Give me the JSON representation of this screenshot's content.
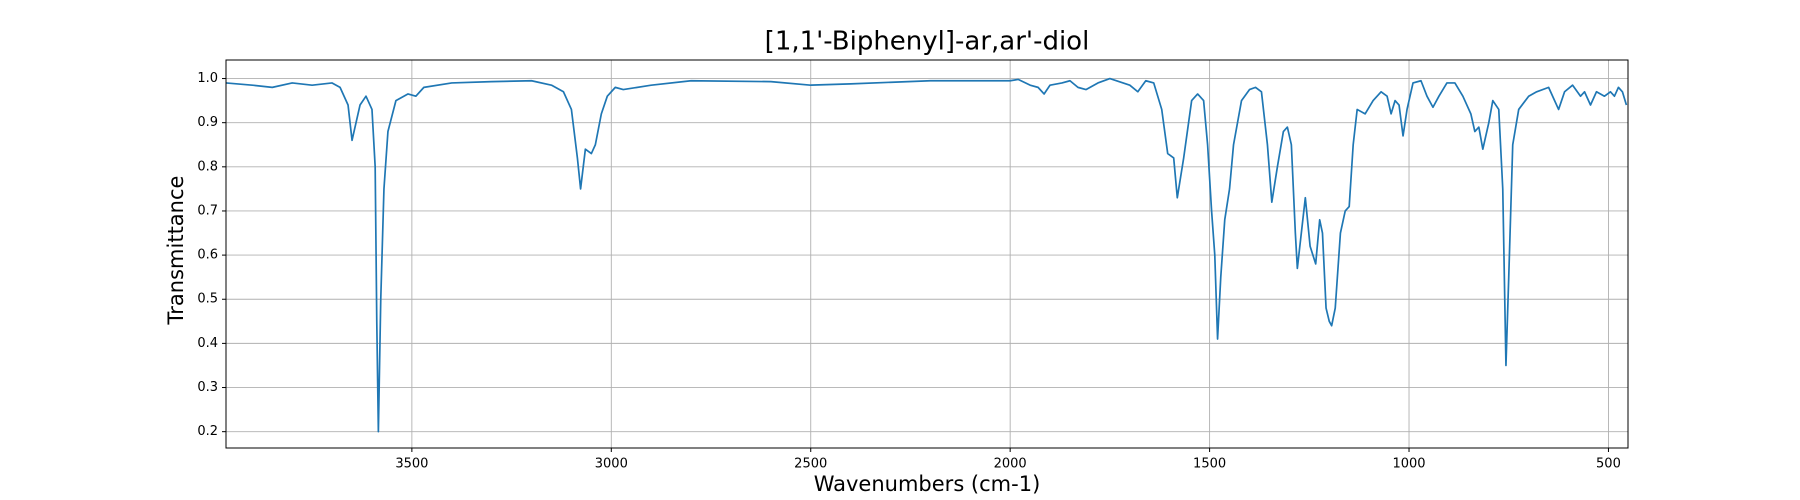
{
  "chart_data": {
    "type": "line",
    "title": "[1,1'-Biphenyl]-ar,ar'-diol",
    "x_label": "Wavenumbers (cm-1)",
    "y_label": "Transmittance",
    "xlim": [
      3966,
      451
    ],
    "ylim": [
      0.163,
      1.042
    ],
    "xticks": [
      3500,
      3000,
      2500,
      2000,
      1500,
      1000,
      500
    ],
    "yticks": [
      0.2,
      0.3,
      0.4,
      0.5,
      0.6,
      0.7,
      0.8,
      0.9,
      {
        "value": 1,
        "label": "1.0"
      }
    ],
    "grid": true,
    "series": [
      {
        "color": "#1f77b4",
        "x": [
          3966,
          3900,
          3850,
          3800,
          3750,
          3700,
          3680,
          3660,
          3650,
          3630,
          3615,
          3600,
          3592,
          3588,
          3584,
          3578,
          3570,
          3560,
          3540,
          3510,
          3490,
          3470,
          3400,
          3300,
          3200,
          3150,
          3120,
          3100,
          3085,
          3077,
          3065,
          3050,
          3040,
          3025,
          3010,
          2990,
          2970,
          2900,
          2800,
          2600,
          2500,
          2400,
          2200,
          2000,
          1980,
          1950,
          1930,
          1915,
          1900,
          1870,
          1850,
          1830,
          1810,
          1780,
          1750,
          1700,
          1680,
          1660,
          1640,
          1620,
          1605,
          1590,
          1581,
          1565,
          1545,
          1530,
          1515,
          1505,
          1495,
          1487,
          1480,
          1472,
          1462,
          1450,
          1440,
          1420,
          1400,
          1385,
          1370,
          1355,
          1344,
          1330,
          1315,
          1305,
          1295,
          1285,
          1280,
          1270,
          1260,
          1248,
          1234,
          1224,
          1217,
          1208,
          1200,
          1194,
          1185,
          1172,
          1160,
          1150,
          1140,
          1130,
          1110,
          1090,
          1070,
          1055,
          1045,
          1035,
          1025,
          1015,
          1005,
          990,
          970,
          955,
          940,
          925,
          905,
          885,
          865,
          845,
          835,
          825,
          815,
          800,
          790,
          775,
          765,
          757,
          750,
          740,
          725,
          700,
          680,
          650,
          635,
          625,
          610,
          590,
          570,
          560,
          545,
          530,
          510,
          495,
          485,
          475,
          465,
          455
        ],
        "values": [
          0.99,
          0.985,
          0.98,
          0.99,
          0.985,
          0.99,
          0.98,
          0.94,
          0.86,
          0.94,
          0.96,
          0.93,
          0.8,
          0.45,
          0.2,
          0.5,
          0.75,
          0.88,
          0.95,
          0.965,
          0.96,
          0.98,
          0.99,
          0.993,
          0.995,
          0.985,
          0.97,
          0.93,
          0.82,
          0.75,
          0.84,
          0.83,
          0.85,
          0.92,
          0.96,
          0.98,
          0.975,
          0.985,
          0.995,
          0.993,
          0.985,
          0.988,
          0.995,
          0.995,
          0.998,
          0.985,
          0.98,
          0.965,
          0.985,
          0.99,
          0.995,
          0.98,
          0.975,
          0.99,
          1.0,
          0.985,
          0.97,
          0.995,
          0.99,
          0.93,
          0.83,
          0.82,
          0.73,
          0.82,
          0.95,
          0.965,
          0.95,
          0.85,
          0.7,
          0.6,
          0.41,
          0.55,
          0.68,
          0.75,
          0.85,
          0.95,
          0.975,
          0.98,
          0.97,
          0.85,
          0.72,
          0.8,
          0.88,
          0.89,
          0.85,
          0.65,
          0.57,
          0.65,
          0.73,
          0.62,
          0.58,
          0.68,
          0.65,
          0.48,
          0.45,
          0.44,
          0.48,
          0.65,
          0.7,
          0.71,
          0.85,
          0.93,
          0.92,
          0.95,
          0.97,
          0.96,
          0.92,
          0.95,
          0.94,
          0.87,
          0.93,
          0.99,
          0.995,
          0.96,
          0.935,
          0.96,
          0.99,
          0.99,
          0.96,
          0.92,
          0.88,
          0.89,
          0.84,
          0.9,
          0.95,
          0.93,
          0.75,
          0.35,
          0.55,
          0.85,
          0.93,
          0.96,
          0.97,
          0.98,
          0.95,
          0.93,
          0.97,
          0.985,
          0.96,
          0.97,
          0.94,
          0.97,
          0.96,
          0.97,
          0.96,
          0.98,
          0.97,
          0.94
        ]
      }
    ]
  }
}
